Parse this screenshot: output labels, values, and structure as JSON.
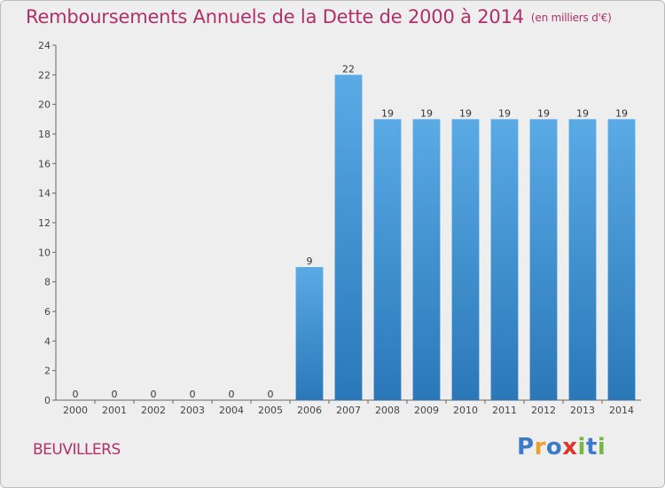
{
  "header": {
    "title": "Remboursements Annuels de la Dette de 2000 à 2014",
    "unit": "(en milliers d'€)"
  },
  "commune": "BEUVILLERS",
  "logo": {
    "letters": [
      {
        "char": "P",
        "color": "#3b7bc8"
      },
      {
        "char": "r",
        "color": "#f0a030"
      },
      {
        "char": "o",
        "color": "#3b7bc8"
      },
      {
        "char": "x",
        "color": "#e0352b"
      },
      {
        "char": "i",
        "color": "#7ab547"
      },
      {
        "char": "t",
        "color": "#3b7bc8"
      },
      {
        "char": "i",
        "color": "#7ab547"
      }
    ]
  },
  "colors": {
    "bar_top": "#5aaae6",
    "bar_bottom": "#2a78b8",
    "accent": "#b0306a"
  },
  "chart_data": {
    "type": "bar",
    "title": "Remboursements Annuels de la Dette de 2000 à 2014",
    "ylabel": "en milliers d'€",
    "xlabel": "",
    "categories": [
      "2000",
      "2001",
      "2002",
      "2003",
      "2004",
      "2005",
      "2006",
      "2007",
      "2008",
      "2009",
      "2010",
      "2011",
      "2012",
      "2013",
      "2014"
    ],
    "values": [
      0,
      0,
      0,
      0,
      0,
      0,
      9,
      22,
      19,
      19,
      19,
      19,
      19,
      19,
      19
    ],
    "data_labels": [
      "0",
      "0",
      "0",
      "0",
      "0",
      "0",
      "9",
      "22",
      "19",
      "19",
      "19",
      "19",
      "19",
      "19",
      "19"
    ],
    "ylim": [
      0,
      24
    ],
    "yticks": [
      0,
      2,
      4,
      6,
      8,
      10,
      12,
      14,
      16,
      18,
      20,
      22,
      24
    ],
    "grid": false,
    "legend": "none"
  }
}
